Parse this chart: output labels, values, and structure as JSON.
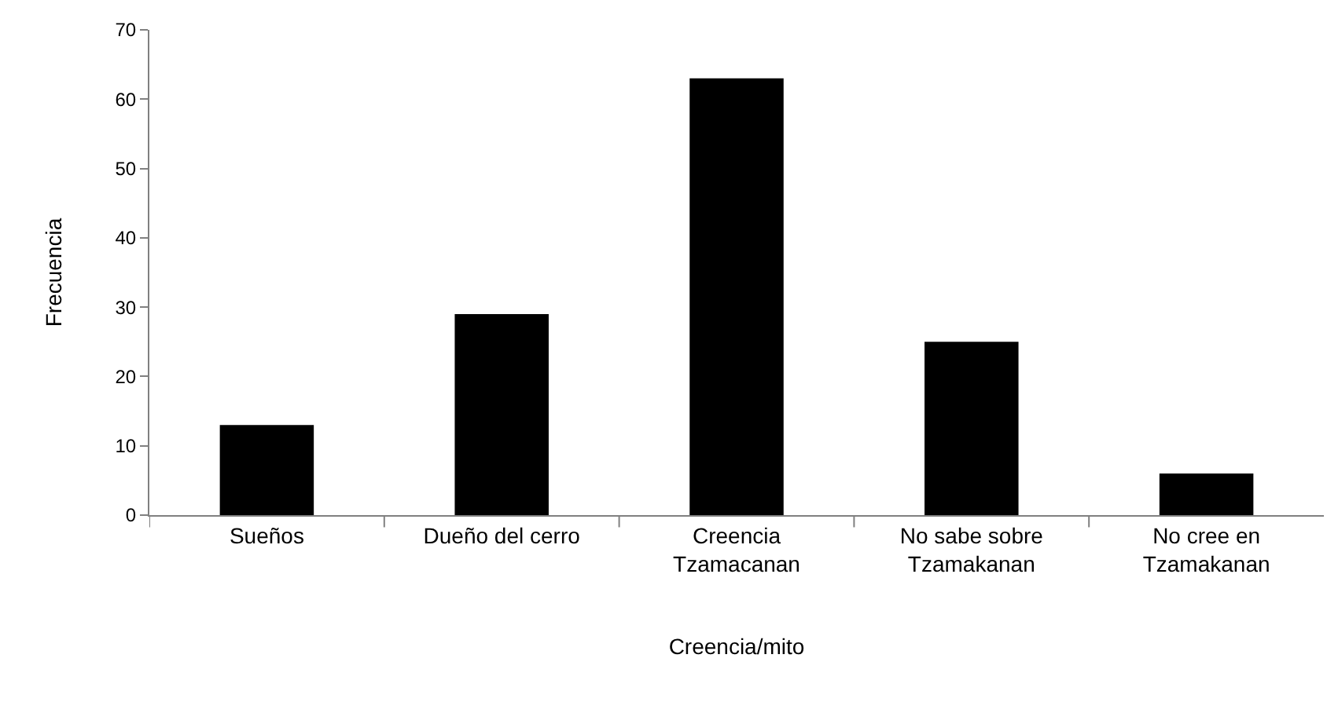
{
  "chart_data": {
    "type": "bar",
    "xlabel": "Creencia/mito",
    "ylabel": "Frecuencia",
    "categories": [
      "Sueños",
      "Dueño del cerro",
      "Creencia Tzamacanan",
      "No sabe sobre Tzamakanan",
      "No cree en Tzamakanan"
    ],
    "values": [
      13,
      29,
      63,
      25,
      6
    ],
    "color": "#000000",
    "ylim": [
      0,
      70
    ],
    "yticks": [
      0,
      10,
      20,
      30,
      40,
      50,
      60,
      70
    ]
  }
}
